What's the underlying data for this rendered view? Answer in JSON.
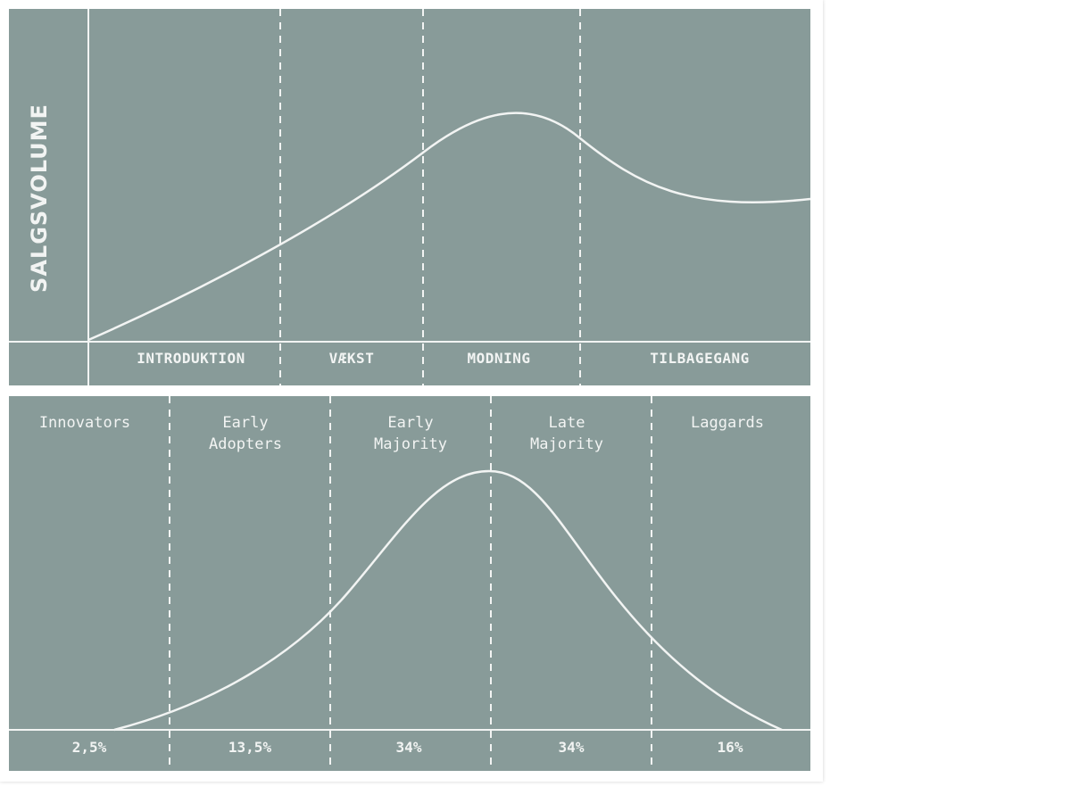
{
  "lifecycle": {
    "y_axis_label": "SALGSVOLUME",
    "stages": [
      "INTRODUKTION",
      "VÆKST",
      "MODNING",
      "TILBAGEGANG"
    ]
  },
  "adoption": {
    "segments": [
      {
        "name": "Innovators",
        "share": "2,5%"
      },
      {
        "name": "Early\nAdopters",
        "share": "13,5%"
      },
      {
        "name": "Early\nMajority",
        "share": "34%"
      },
      {
        "name": "Late\nMajority",
        "share": "34%"
      },
      {
        "name": "Laggards",
        "share": "16%"
      }
    ]
  },
  "colors": {
    "panel_background": "#889b99",
    "line": "#f2f4f3",
    "frame": "#ffffff"
  }
}
